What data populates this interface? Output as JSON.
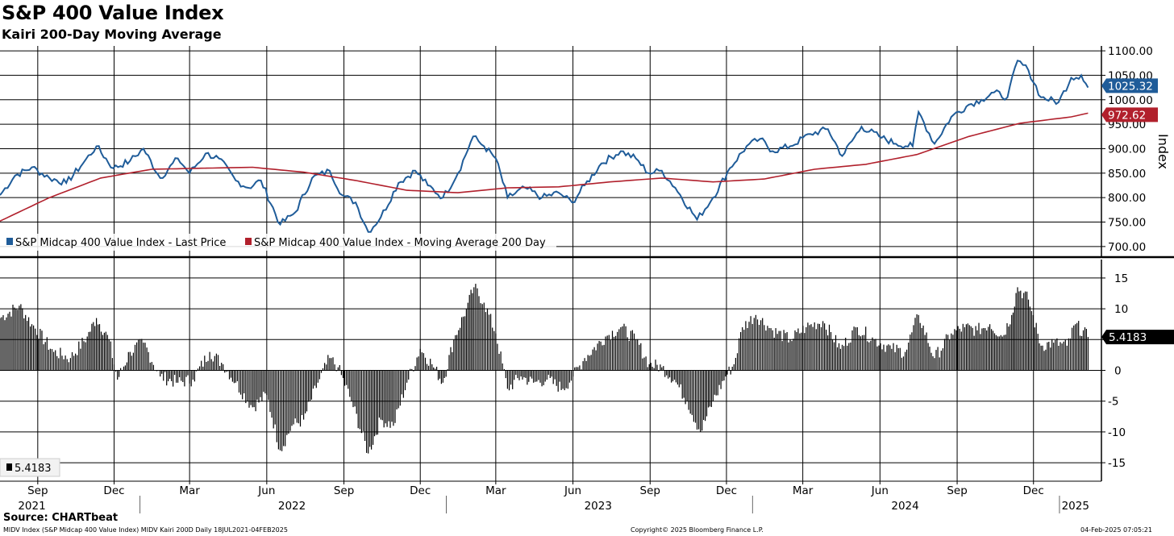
{
  "header": {
    "title": "S&P 400 Value Index",
    "subtitle": "Kairi 200-Day Moving Average"
  },
  "footer": {
    "source": "Source: CHARTbeat",
    "left": "MIDV Index (S&P Midcap 400 Value Index) MIDV Kairi 200D  Daily 18JUL2021-04FEB2025",
    "center": "Copyright© 2025 Bloomberg Finance L.P.",
    "right": "04-Feb-2025 07:05:21"
  },
  "chart_data": [
    {
      "type": "line",
      "ylabel": "Index",
      "ylim": [
        680,
        1110
      ],
      "yticks": [
        "700.00",
        "750.00",
        "800.00",
        "850.00",
        "900.00",
        "950.00",
        "1000.00",
        "1050.00",
        "1100.00"
      ],
      "grid": true,
      "legend_position": "bottom-left",
      "series": [
        {
          "name": "S&P Midcap 400 Value Index - Last Price",
          "color": "#1f5c99",
          "last_value_label": "1025.32",
          "points": [
            [
              "2021-07-18",
              805
            ],
            [
              "2021-08-05",
              845
            ],
            [
              "2021-08-25",
              862
            ],
            [
              "2021-09-15",
              840
            ],
            [
              "2021-10-05",
              830
            ],
            [
              "2021-10-25",
              870
            ],
            [
              "2021-11-10",
              905
            ],
            [
              "2021-11-30",
              860
            ],
            [
              "2021-12-20",
              875
            ],
            [
              "2022-01-05",
              900
            ],
            [
              "2022-01-25",
              840
            ],
            [
              "2022-02-15",
              880
            ],
            [
              "2022-03-01",
              850
            ],
            [
              "2022-03-20",
              890
            ],
            [
              "2022-04-05",
              880
            ],
            [
              "2022-04-25",
              835
            ],
            [
              "2022-05-10",
              820
            ],
            [
              "2022-05-25",
              835
            ],
            [
              "2022-06-17",
              745
            ],
            [
              "2022-07-05",
              770
            ],
            [
              "2022-07-25",
              840
            ],
            [
              "2022-08-15",
              855
            ],
            [
              "2022-08-30",
              805
            ],
            [
              "2022-09-15",
              790
            ],
            [
              "2022-09-30",
              730
            ],
            [
              "2022-10-15",
              760
            ],
            [
              "2022-11-05",
              830
            ],
            [
              "2022-11-25",
              855
            ],
            [
              "2022-12-10",
              825
            ],
            [
              "2022-12-28",
              800
            ],
            [
              "2023-01-15",
              850
            ],
            [
              "2023-02-02",
              925
            ],
            [
              "2023-02-15",
              905
            ],
            [
              "2023-03-01",
              880
            ],
            [
              "2023-03-15",
              800
            ],
            [
              "2023-04-05",
              820
            ],
            [
              "2023-04-25",
              800
            ],
            [
              "2023-05-15",
              810
            ],
            [
              "2023-05-31",
              790
            ],
            [
              "2023-06-15",
              825
            ],
            [
              "2023-07-05",
              870
            ],
            [
              "2023-07-28",
              895
            ],
            [
              "2023-08-15",
              880
            ],
            [
              "2023-08-30",
              850
            ],
            [
              "2023-09-15",
              855
            ],
            [
              "2023-10-01",
              820
            ],
            [
              "2023-10-27",
              755
            ],
            [
              "2023-11-15",
              800
            ],
            [
              "2023-12-05",
              860
            ],
            [
              "2023-12-25",
              905
            ],
            [
              "2024-01-10",
              920
            ],
            [
              "2024-01-25",
              895
            ],
            [
              "2024-02-15",
              905
            ],
            [
              "2024-03-10",
              930
            ],
            [
              "2024-03-31",
              940
            ],
            [
              "2024-04-17",
              885
            ],
            [
              "2024-05-10",
              945
            ],
            [
              "2024-05-31",
              925
            ],
            [
              "2024-06-20",
              910
            ],
            [
              "2024-07-10",
              905
            ],
            [
              "2024-07-17",
              975
            ],
            [
              "2024-08-05",
              910
            ],
            [
              "2024-08-25",
              965
            ],
            [
              "2024-09-15",
              990
            ],
            [
              "2024-09-30",
              1000
            ],
            [
              "2024-10-15",
              1015
            ],
            [
              "2024-10-31",
              1005
            ],
            [
              "2024-11-12",
              1080
            ],
            [
              "2024-11-25",
              1060
            ],
            [
              "2024-12-10",
              1005
            ],
            [
              "2024-12-31",
              995
            ],
            [
              "2025-01-15",
              1045
            ],
            [
              "2025-01-27",
              1050
            ],
            [
              "2025-02-04",
              1025
            ]
          ]
        },
        {
          "name": "S&P Midcap 400 Value Index - Moving Average 200 Day",
          "color": "#b1202c",
          "last_value_label": "972.62",
          "points": [
            [
              "2021-07-18",
              752
            ],
            [
              "2021-09-15",
              800
            ],
            [
              "2021-11-15",
              840
            ],
            [
              "2022-01-15",
              858
            ],
            [
              "2022-03-15",
              860
            ],
            [
              "2022-05-15",
              862
            ],
            [
              "2022-07-15",
              852
            ],
            [
              "2022-09-15",
              835
            ],
            [
              "2022-11-15",
              815
            ],
            [
              "2023-01-15",
              810
            ],
            [
              "2023-03-15",
              820
            ],
            [
              "2023-05-15",
              822
            ],
            [
              "2023-07-15",
              832
            ],
            [
              "2023-09-15",
              840
            ],
            [
              "2023-11-15",
              832
            ],
            [
              "2024-01-15",
              838
            ],
            [
              "2024-03-15",
              858
            ],
            [
              "2024-05-15",
              868
            ],
            [
              "2024-07-15",
              888
            ],
            [
              "2024-09-15",
              925
            ],
            [
              "2024-11-15",
              952
            ],
            [
              "2025-01-15",
              965
            ],
            [
              "2025-02-04",
              972.6
            ]
          ]
        }
      ]
    },
    {
      "type": "bar",
      "ylim": [
        -18,
        18
      ],
      "yticks": [
        "15",
        "10",
        "5",
        "0",
        "-5",
        "-10",
        "-15"
      ],
      "grid": true,
      "legend_position": "bottom-left",
      "series": [
        {
          "name": "5.4183",
          "color": "#000000",
          "last_value_label": "5.4183",
          "points": [
            [
              "2021-07-18",
              8.5
            ],
            [
              "2021-08-10",
              10.5
            ],
            [
              "2021-08-25",
              7.5
            ],
            [
              "2021-09-20",
              3.0
            ],
            [
              "2021-10-10",
              2.0
            ],
            [
              "2021-10-30",
              5.5
            ],
            [
              "2021-11-10",
              8.5
            ],
            [
              "2021-11-25",
              5.0
            ],
            [
              "2021-12-05",
              -1.5
            ],
            [
              "2021-12-20",
              3.0
            ],
            [
              "2022-01-05",
              4.5
            ],
            [
              "2022-01-25",
              -1.0
            ],
            [
              "2022-02-15",
              -2.0
            ],
            [
              "2022-03-05",
              -1.5
            ],
            [
              "2022-03-25",
              3.0
            ],
            [
              "2022-04-10",
              1.0
            ],
            [
              "2022-04-25",
              -2.0
            ],
            [
              "2022-05-15",
              -6.0
            ],
            [
              "2022-06-01",
              -4.0
            ],
            [
              "2022-06-17",
              -13.0
            ],
            [
              "2022-07-01",
              -9.0
            ],
            [
              "2022-07-15",
              -8.0
            ],
            [
              "2022-08-01",
              -2.0
            ],
            [
              "2022-08-15",
              2.0
            ],
            [
              "2022-08-25",
              0.5
            ],
            [
              "2022-09-10",
              -5.0
            ],
            [
              "2022-09-30",
              -13.5
            ],
            [
              "2022-10-15",
              -8.0
            ],
            [
              "2022-10-30",
              -9.0
            ],
            [
              "2022-11-15",
              -2.0
            ],
            [
              "2022-12-01",
              3.5
            ],
            [
              "2022-12-15",
              1.0
            ],
            [
              "2022-12-28",
              -2.0
            ],
            [
              "2023-01-10",
              5.0
            ],
            [
              "2023-01-25",
              10.0
            ],
            [
              "2023-02-03",
              13.5
            ],
            [
              "2023-02-15",
              11.0
            ],
            [
              "2023-03-01",
              6.0
            ],
            [
              "2023-03-15",
              -3.0
            ],
            [
              "2023-03-31",
              -1.0
            ],
            [
              "2023-04-15",
              -2.0
            ],
            [
              "2023-05-01",
              -1.5
            ],
            [
              "2023-05-20",
              -3.0
            ],
            [
              "2023-06-01",
              -1.0
            ],
            [
              "2023-06-15",
              2.0
            ],
            [
              "2023-07-10",
              5.5
            ],
            [
              "2023-07-28",
              7.0
            ],
            [
              "2023-08-15",
              5.0
            ],
            [
              "2023-08-31",
              1.0
            ],
            [
              "2023-09-15",
              0.5
            ],
            [
              "2023-09-30",
              -1.5
            ],
            [
              "2023-10-15",
              -5.0
            ],
            [
              "2023-10-31",
              -10.0
            ],
            [
              "2023-11-15",
              -5.0
            ],
            [
              "2023-11-30",
              -1.0
            ],
            [
              "2023-12-10",
              1.0
            ],
            [
              "2023-12-20",
              7.0
            ],
            [
              "2024-01-05",
              9.0
            ],
            [
              "2024-01-25",
              6.5
            ],
            [
              "2024-02-15",
              5.0
            ],
            [
              "2024-03-05",
              7.0
            ],
            [
              "2024-03-25",
              8.0
            ],
            [
              "2024-04-15",
              3.5
            ],
            [
              "2024-05-05",
              7.0
            ],
            [
              "2024-05-25",
              5.0
            ],
            [
              "2024-06-15",
              3.5
            ],
            [
              "2024-07-01",
              3.0
            ],
            [
              "2024-07-17",
              9.0
            ],
            [
              "2024-08-05",
              2.0
            ],
            [
              "2024-08-25",
              6.0
            ],
            [
              "2024-09-10",
              7.0
            ],
            [
              "2024-09-25",
              6.5
            ],
            [
              "2024-10-10",
              7.5
            ],
            [
              "2024-10-25",
              5.5
            ],
            [
              "2024-11-05",
              9.0
            ],
            [
              "2024-11-12",
              13.5
            ],
            [
              "2024-11-25",
              11.5
            ],
            [
              "2024-12-10",
              4.0
            ],
            [
              "2024-12-25",
              4.5
            ],
            [
              "2025-01-10",
              4.0
            ],
            [
              "2025-01-20",
              7.5
            ],
            [
              "2025-02-04",
              5.4183
            ]
          ]
        }
      ]
    }
  ],
  "x_axis": {
    "month_ticks": [
      {
        "date": "2021-09-01",
        "label": "Sep"
      },
      {
        "date": "2021-12-01",
        "label": "Dec"
      },
      {
        "date": "2022-03-01",
        "label": "Mar"
      },
      {
        "date": "2022-06-01",
        "label": "Jun"
      },
      {
        "date": "2022-09-01",
        "label": "Sep"
      },
      {
        "date": "2022-12-01",
        "label": "Dec"
      },
      {
        "date": "2023-03-01",
        "label": "Mar"
      },
      {
        "date": "2023-06-01",
        "label": "Jun"
      },
      {
        "date": "2023-09-01",
        "label": "Sep"
      },
      {
        "date": "2023-12-01",
        "label": "Dec"
      },
      {
        "date": "2024-03-01",
        "label": "Mar"
      },
      {
        "date": "2024-06-01",
        "label": "Jun"
      },
      {
        "date": "2024-09-01",
        "label": "Sep"
      },
      {
        "date": "2024-12-01",
        "label": "Dec"
      }
    ],
    "year_labels": [
      {
        "date": "2021-08-25",
        "label": "2021"
      },
      {
        "date": "2022-07-01",
        "label": "2022"
      },
      {
        "date": "2023-07-01",
        "label": "2023"
      },
      {
        "date": "2024-07-01",
        "label": "2024"
      },
      {
        "date": "2025-01-20",
        "label": "2025"
      }
    ],
    "year_dividers": [
      "2022-01-01",
      "2023-01-01",
      "2024-01-01",
      "2025-01-01"
    ],
    "range": [
      "2021-07-18",
      "2025-02-20"
    ]
  }
}
